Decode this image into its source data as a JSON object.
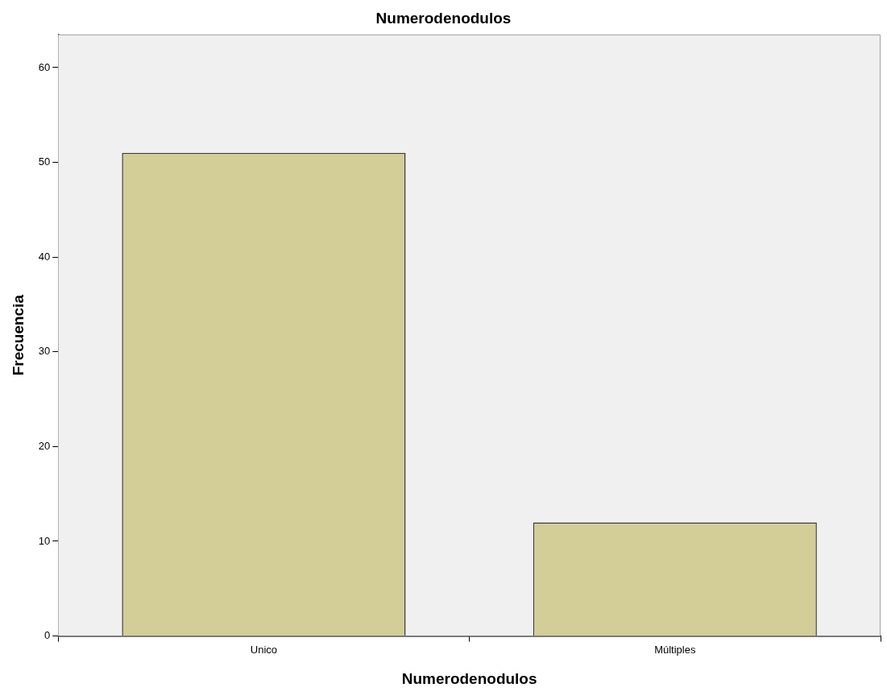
{
  "chart_data": {
    "type": "bar",
    "title": "Numerodenodulos",
    "xlabel": "Numerodenodulos",
    "ylabel": "Frecuencia",
    "categories": [
      "Unico",
      "Múltiples"
    ],
    "values": [
      51,
      12
    ],
    "color": "#d3ce97",
    "ylim": [
      0,
      63.5
    ],
    "yticks": [
      0,
      10,
      20,
      30,
      40,
      50,
      60
    ],
    "grid": false,
    "legend": false
  }
}
